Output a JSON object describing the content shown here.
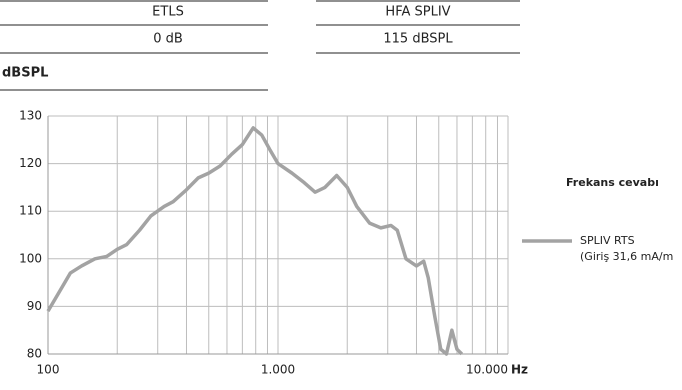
{
  "header": {
    "rows": [
      [
        "ETLS",
        "HFA SPLIV"
      ],
      [
        "0 dB",
        "115 dBSPL"
      ]
    ],
    "unit_label": "dBSPL"
  },
  "chart_data": {
    "type": "line",
    "x_label": "Hz",
    "legend_title": "Frekans cevabı",
    "legend_position": "right",
    "xscale": "log",
    "grid": true,
    "xlim": [
      100,
      10000
    ],
    "xticks": [
      100,
      {
        "value": 1000,
        "label": "1.000"
      },
      {
        "value": 10000,
        "label": "10.000"
      }
    ],
    "ylim": [
      80,
      130
    ],
    "yticks": [
      80,
      90,
      100,
      110,
      120,
      130
    ],
    "x": [
      100,
      115,
      125,
      140,
      160,
      180,
      200,
      220,
      250,
      280,
      320,
      350,
      400,
      450,
      500,
      560,
      630,
      700,
      780,
      850,
      920,
      1000,
      1150,
      1300,
      1450,
      1600,
      1800,
      2000,
      2200,
      2500,
      2800,
      3100,
      3300,
      3600,
      4000,
      4300,
      4500,
      4800,
      5100,
      5400,
      5700,
      6000,
      6300
    ],
    "series": [
      {
        "name": "SPLIV RTS",
        "detail": "(Giriş 31,6 mA/m",
        "color": "#a3a3a3",
        "values": [
          89,
          94,
          97,
          98.5,
          100,
          100.5,
          102,
          103,
          106,
          109,
          111,
          112,
          114.5,
          117,
          118,
          119.5,
          122,
          124,
          127.5,
          126,
          123,
          120,
          118,
          116,
          114,
          115,
          117.5,
          115,
          111,
          107.5,
          106.5,
          107,
          106,
          100,
          98.5,
          99.5,
          96,
          88,
          81,
          80,
          85,
          81,
          80
        ]
      }
    ]
  }
}
